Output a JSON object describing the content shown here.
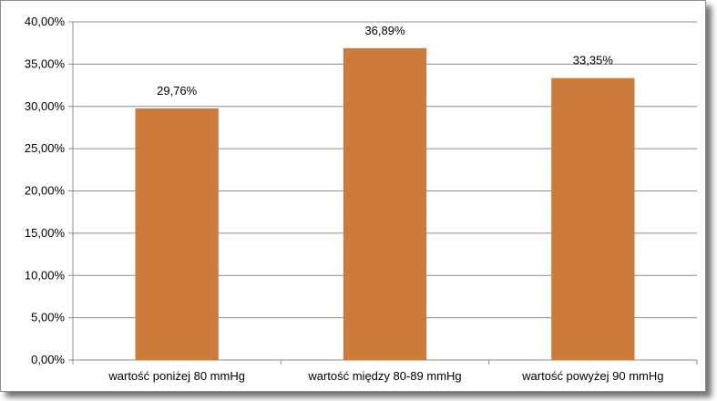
{
  "chart_data": {
    "type": "bar",
    "categories": [
      "wartość poniżej 80 mmHg",
      "wartość między 80-89 mmHg",
      "wartość powyżej 90 mmHg"
    ],
    "values": [
      29.76,
      36.89,
      33.35
    ],
    "data_labels": [
      "29,76%",
      "36,89%",
      "33,35%"
    ],
    "y_ticks": [
      0,
      5,
      10,
      15,
      20,
      25,
      30,
      35,
      40
    ],
    "y_tick_labels": [
      "0,00%",
      "5,00%",
      "10,00%",
      "15,00%",
      "20,00%",
      "25,00%",
      "30,00%",
      "35,00%",
      "40,00%"
    ],
    "ylim": [
      0,
      40
    ],
    "grid": true,
    "legend": "none",
    "bar_color": "#cd7b3a",
    "gridline_color": "#8c8c8c"
  }
}
